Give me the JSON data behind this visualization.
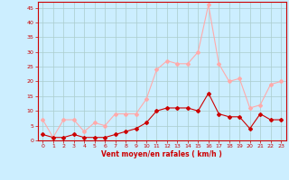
{
  "x": [
    0,
    1,
    2,
    3,
    4,
    5,
    6,
    7,
    8,
    9,
    10,
    11,
    12,
    13,
    14,
    15,
    16,
    17,
    18,
    19,
    20,
    21,
    22,
    23
  ],
  "y_mean": [
    2,
    1,
    1,
    2,
    1,
    1,
    1,
    2,
    3,
    4,
    6,
    10,
    11,
    11,
    11,
    10,
    16,
    9,
    8,
    8,
    4,
    9,
    7,
    7
  ],
  "y_gust": [
    7,
    1,
    7,
    7,
    3,
    6,
    5,
    9,
    9,
    9,
    14,
    24,
    27,
    26,
    26,
    30,
    46,
    26,
    20,
    21,
    11,
    12,
    19,
    20
  ],
  "xlabel": "Vent moyen/en rafales ( km/h )",
  "yticks": [
    0,
    5,
    10,
    15,
    20,
    25,
    30,
    35,
    40,
    45
  ],
  "xticks": [
    0,
    1,
    2,
    3,
    4,
    5,
    6,
    7,
    8,
    9,
    10,
    11,
    12,
    13,
    14,
    15,
    16,
    17,
    18,
    19,
    20,
    21,
    22,
    23
  ],
  "bg_color": "#cceeff",
  "grid_color": "#aacccc",
  "mean_color": "#cc0000",
  "gust_color": "#ffaaaa",
  "line_width": 0.8,
  "marker_size": 2.0
}
